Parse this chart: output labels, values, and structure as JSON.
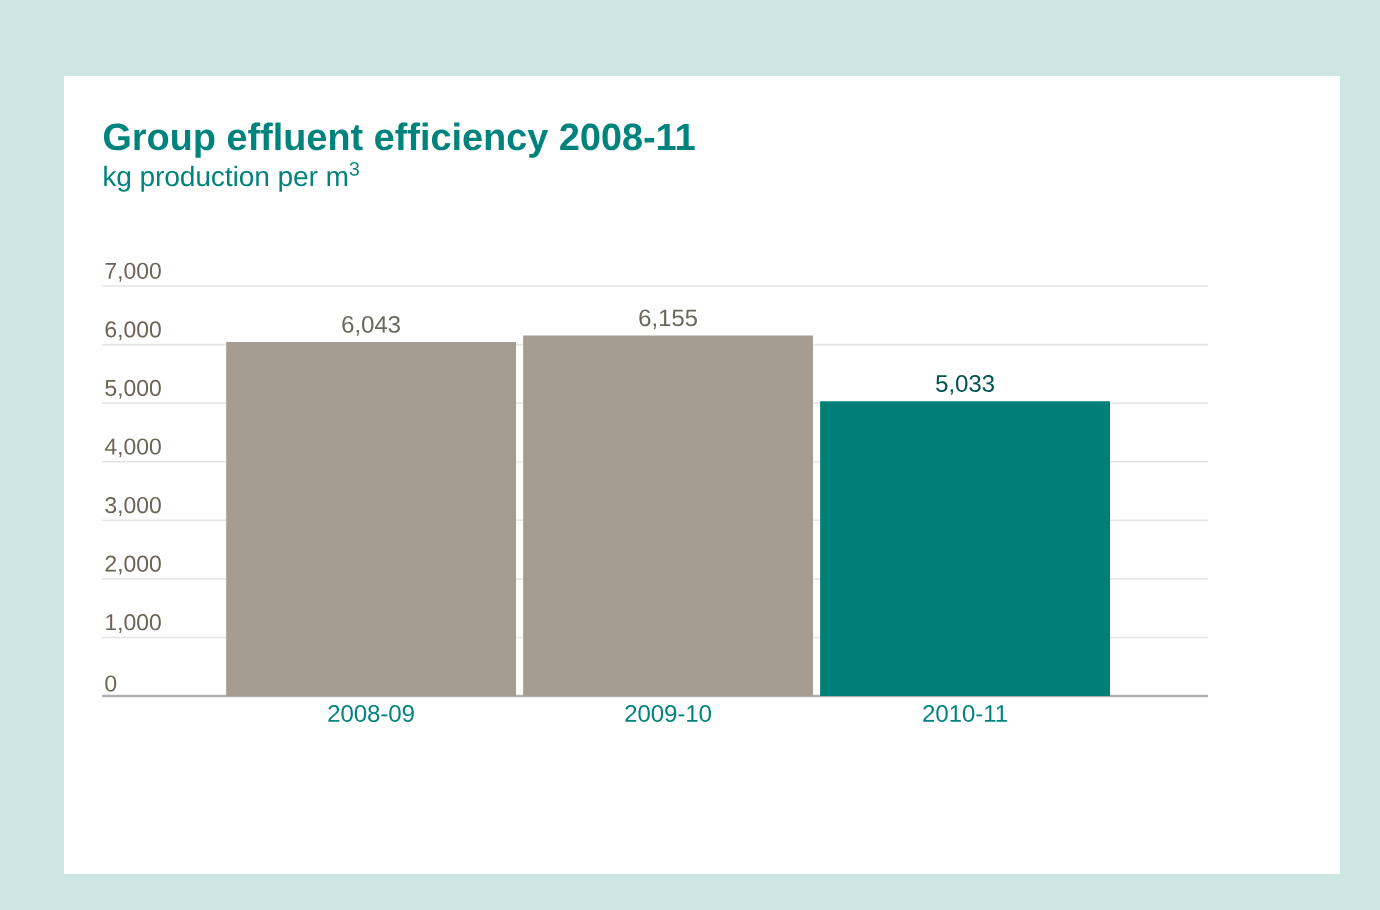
{
  "chart_data": {
    "type": "bar",
    "title": "Group effluent efficiency 2008-11",
    "subtitle": "kg production per m$^{3}$",
    "categories": [
      "2008-09",
      "2009-10",
      "2010-11"
    ],
    "values": [
      6043,
      6155,
      5033
    ],
    "colors": [
      "#a59d8f",
      "#a59d8f",
      "#007f78"
    ],
    "value_labels": [
      "6,043",
      "6,155",
      "5,033"
    ],
    "ylim": [
      0,
      7000
    ],
    "yticks": [
      0,
      {
        "value": 1000,
        "label": "1,000"
      },
      {
        "value": 2000,
        "label": "2,000"
      },
      {
        "value": 3000,
        "label": "3,000"
      },
      {
        "value": 4000,
        "label": "4,000"
      },
      {
        "value": 5000,
        "label": "5,000"
      },
      {
        "value": 6000,
        "label": "6,000"
      },
      {
        "value": 7000,
        "label": "7,000"
      }
    ],
    "grid": "y"
  }
}
